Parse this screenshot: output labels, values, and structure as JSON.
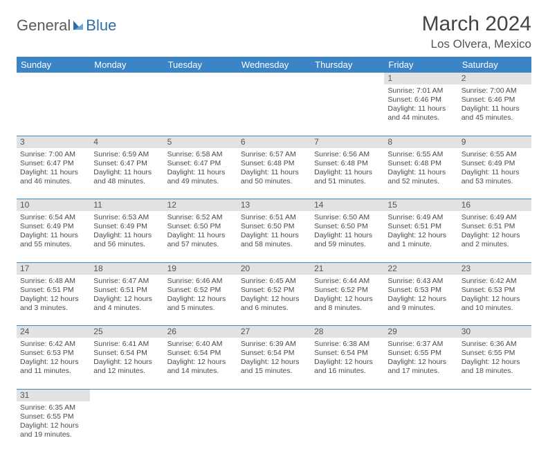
{
  "logo": {
    "part1": "General",
    "part2": "Blue"
  },
  "title": "March 2024",
  "location": "Los Olvera, Mexico",
  "colors": {
    "header_bg": "#3b85c6",
    "header_text": "#ffffff",
    "daynum_bg": "#e2e2e2",
    "row_divider": "#3b85c6",
    "text": "#4a4a4a",
    "logo_gray": "#5a5a5a",
    "logo_blue": "#2f6fa7"
  },
  "weekdays": [
    "Sunday",
    "Monday",
    "Tuesday",
    "Wednesday",
    "Thursday",
    "Friday",
    "Saturday"
  ],
  "weeks": [
    [
      null,
      null,
      null,
      null,
      null,
      {
        "n": "1",
        "sr": "7:01 AM",
        "ss": "6:46 PM",
        "dl": "11 hours and 44 minutes."
      },
      {
        "n": "2",
        "sr": "7:00 AM",
        "ss": "6:46 PM",
        "dl": "11 hours and 45 minutes."
      }
    ],
    [
      {
        "n": "3",
        "sr": "7:00 AM",
        "ss": "6:47 PM",
        "dl": "11 hours and 46 minutes."
      },
      {
        "n": "4",
        "sr": "6:59 AM",
        "ss": "6:47 PM",
        "dl": "11 hours and 48 minutes."
      },
      {
        "n": "5",
        "sr": "6:58 AM",
        "ss": "6:47 PM",
        "dl": "11 hours and 49 minutes."
      },
      {
        "n": "6",
        "sr": "6:57 AM",
        "ss": "6:48 PM",
        "dl": "11 hours and 50 minutes."
      },
      {
        "n": "7",
        "sr": "6:56 AM",
        "ss": "6:48 PM",
        "dl": "11 hours and 51 minutes."
      },
      {
        "n": "8",
        "sr": "6:55 AM",
        "ss": "6:48 PM",
        "dl": "11 hours and 52 minutes."
      },
      {
        "n": "9",
        "sr": "6:55 AM",
        "ss": "6:49 PM",
        "dl": "11 hours and 53 minutes."
      }
    ],
    [
      {
        "n": "10",
        "sr": "6:54 AM",
        "ss": "6:49 PM",
        "dl": "11 hours and 55 minutes."
      },
      {
        "n": "11",
        "sr": "6:53 AM",
        "ss": "6:49 PM",
        "dl": "11 hours and 56 minutes."
      },
      {
        "n": "12",
        "sr": "6:52 AM",
        "ss": "6:50 PM",
        "dl": "11 hours and 57 minutes."
      },
      {
        "n": "13",
        "sr": "6:51 AM",
        "ss": "6:50 PM",
        "dl": "11 hours and 58 minutes."
      },
      {
        "n": "14",
        "sr": "6:50 AM",
        "ss": "6:50 PM",
        "dl": "11 hours and 59 minutes."
      },
      {
        "n": "15",
        "sr": "6:49 AM",
        "ss": "6:51 PM",
        "dl": "12 hours and 1 minute."
      },
      {
        "n": "16",
        "sr": "6:49 AM",
        "ss": "6:51 PM",
        "dl": "12 hours and 2 minutes."
      }
    ],
    [
      {
        "n": "17",
        "sr": "6:48 AM",
        "ss": "6:51 PM",
        "dl": "12 hours and 3 minutes."
      },
      {
        "n": "18",
        "sr": "6:47 AM",
        "ss": "6:51 PM",
        "dl": "12 hours and 4 minutes."
      },
      {
        "n": "19",
        "sr": "6:46 AM",
        "ss": "6:52 PM",
        "dl": "12 hours and 5 minutes."
      },
      {
        "n": "20",
        "sr": "6:45 AM",
        "ss": "6:52 PM",
        "dl": "12 hours and 6 minutes."
      },
      {
        "n": "21",
        "sr": "6:44 AM",
        "ss": "6:52 PM",
        "dl": "12 hours and 8 minutes."
      },
      {
        "n": "22",
        "sr": "6:43 AM",
        "ss": "6:53 PM",
        "dl": "12 hours and 9 minutes."
      },
      {
        "n": "23",
        "sr": "6:42 AM",
        "ss": "6:53 PM",
        "dl": "12 hours and 10 minutes."
      }
    ],
    [
      {
        "n": "24",
        "sr": "6:42 AM",
        "ss": "6:53 PM",
        "dl": "12 hours and 11 minutes."
      },
      {
        "n": "25",
        "sr": "6:41 AM",
        "ss": "6:54 PM",
        "dl": "12 hours and 12 minutes."
      },
      {
        "n": "26",
        "sr": "6:40 AM",
        "ss": "6:54 PM",
        "dl": "12 hours and 14 minutes."
      },
      {
        "n": "27",
        "sr": "6:39 AM",
        "ss": "6:54 PM",
        "dl": "12 hours and 15 minutes."
      },
      {
        "n": "28",
        "sr": "6:38 AM",
        "ss": "6:54 PM",
        "dl": "12 hours and 16 minutes."
      },
      {
        "n": "29",
        "sr": "6:37 AM",
        "ss": "6:55 PM",
        "dl": "12 hours and 17 minutes."
      },
      {
        "n": "30",
        "sr": "6:36 AM",
        "ss": "6:55 PM",
        "dl": "12 hours and 18 minutes."
      }
    ],
    [
      {
        "n": "31",
        "sr": "6:35 AM",
        "ss": "6:55 PM",
        "dl": "12 hours and 19 minutes."
      },
      null,
      null,
      null,
      null,
      null,
      null
    ]
  ],
  "labels": {
    "sunrise": "Sunrise:",
    "sunset": "Sunset:",
    "daylight": "Daylight:"
  }
}
